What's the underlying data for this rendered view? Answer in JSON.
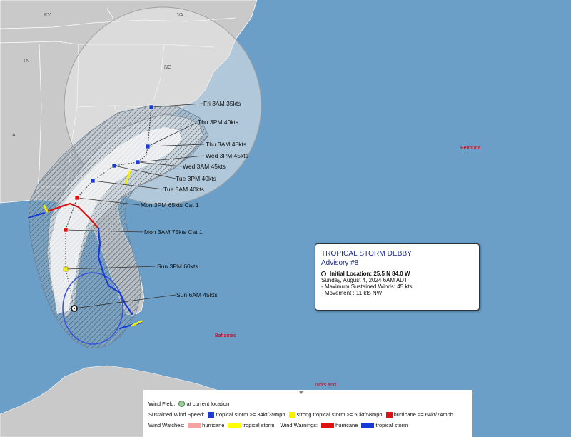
{
  "map": {
    "states": [
      "KY",
      "VA",
      "TN",
      "NC",
      "AL"
    ],
    "places": [
      "Bermuda",
      "Bahamas",
      "Turks and"
    ],
    "forecast_points": [
      {
        "label": "Sun 6AM 45kts",
        "intensity": "current"
      },
      {
        "label": "Sun 3PM 60kts",
        "intensity": "strong-tropical-storm"
      },
      {
        "label": "Mon 3AM 75kts Cat 1",
        "intensity": "hurricane"
      },
      {
        "label": "Mon 3PM 65kts Cat 1",
        "intensity": "hurricane"
      },
      {
        "label": "Tue 3AM 40kts",
        "intensity": "tropical-storm"
      },
      {
        "label": "Tue 3PM 40kts",
        "intensity": "tropical-storm"
      },
      {
        "label": "Wed 3AM 45kts",
        "intensity": "tropical-storm"
      },
      {
        "label": "Wed 3PM 45kts",
        "intensity": "tropical-storm"
      },
      {
        "label": "Thu 3AM 45kts",
        "intensity": "tropical-storm"
      },
      {
        "label": "Thu 3PM 40kts",
        "intensity": "tropical-storm"
      },
      {
        "label": "Fri 3AM 35kts",
        "intensity": "tropical-storm"
      }
    ],
    "colors": {
      "ocean": "#6b9fc7",
      "land": "#c9c9c9",
      "cone": "#f2f2f2",
      "tropical_storm": "#1a3ad6",
      "strong_tropical_storm": "#f5f000",
      "hurricane": "#e01010",
      "hurricane_watch": "#f4a3a3",
      "tropical_storm_watch": "#ffff00",
      "hurricane_warning": "#e01010",
      "tropical_storm_warning": "#1a3ad6"
    }
  },
  "info": {
    "title": "TROPICAL STORM DEBBY",
    "advisory": "Advisory #8",
    "initial_location": "Initial Location: 25.5 N 84.0 W",
    "datetime": "Sunday, August 4, 2024 6AM ADT",
    "max_winds": "- Maximum Sustained Winds: 45 kts",
    "movement": "- Movement : 11 kts NW"
  },
  "legend": {
    "wind_field_label": "Wind Field:",
    "wind_field_current": "at current location",
    "sustained_label": "Sustained Wind Speed:",
    "sustained_ts": "tropical storm >= 34kt/39mph",
    "sustained_sts": "strong tropical storm >= 50kt/58mph",
    "sustained_hu": "hurricane >= 64kt/74mph",
    "watches_label": "Wind Watches:",
    "watch_hu": "hurricane",
    "watch_ts": "tropical storm",
    "warnings_label": "Wind Warnings:",
    "warning_hu": "hurricane",
    "warning_ts": "tropical storm"
  }
}
